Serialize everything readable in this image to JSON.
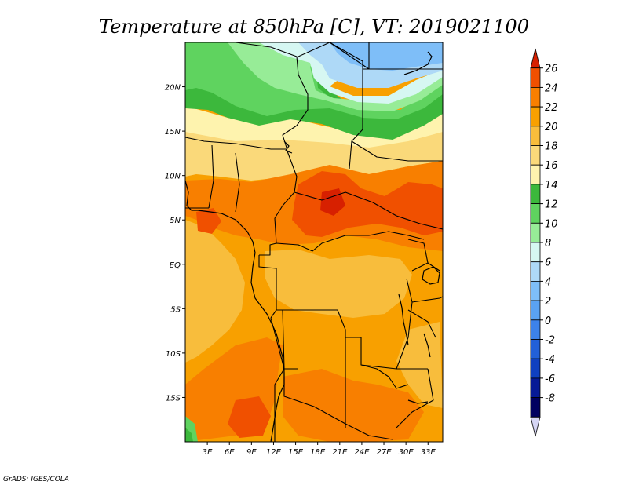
{
  "title": "Temperature at 850hPa [C], VT: 2019021100",
  "credit": "GrADS: IGES/COLA",
  "map": {
    "lon_range": [
      0,
      35
    ],
    "lat_range": [
      -20,
      25
    ],
    "x_ticks": [
      {
        "value": 3,
        "label": "3E"
      },
      {
        "value": 6,
        "label": "6E"
      },
      {
        "value": 9,
        "label": "9E"
      },
      {
        "value": 12,
        "label": "12E"
      },
      {
        "value": 15,
        "label": "15E"
      },
      {
        "value": 18,
        "label": "18E"
      },
      {
        "value": 21,
        "label": "21E"
      },
      {
        "value": 24,
        "label": "24E"
      },
      {
        "value": 27,
        "label": "27E"
      },
      {
        "value": 30,
        "label": "30E"
      },
      {
        "value": 33,
        "label": "33E"
      }
    ],
    "y_ticks": [
      {
        "value": 20,
        "label": "20N"
      },
      {
        "value": 15,
        "label": "15N"
      },
      {
        "value": 10,
        "label": "10N"
      },
      {
        "value": 5,
        "label": "5N"
      },
      {
        "value": 0,
        "label": "EQ"
      },
      {
        "value": -5,
        "label": "5S"
      },
      {
        "value": -10,
        "label": "10S"
      },
      {
        "value": -15,
        "label": "15S"
      }
    ]
  },
  "colorbar": {
    "levels": [
      "26",
      "24",
      "22",
      "20",
      "18",
      "16",
      "14",
      "12",
      "10",
      "8",
      "6",
      "4",
      "2",
      "0",
      "-2",
      "-4",
      "-6",
      "-8"
    ],
    "colors": [
      "#d72000",
      "#f05000",
      "#f87f00",
      "#f8a000",
      "#f8bd3c",
      "#fad97a",
      "#fef3ae",
      "#3cb83c",
      "#5fd35f",
      "#97ec97",
      "#d6f7f2",
      "#aed9f7",
      "#7ebef8",
      "#5aa2f2",
      "#3d82ea",
      "#2260d8",
      "#0f40c0",
      "#061a96",
      "#000060",
      "#d6d6f5"
    ]
  },
  "chart_data": {
    "type": "heatmap",
    "title": "Temperature at 850hPa [C], VT: 2019021100",
    "variable": "Temperature at 850hPa",
    "unit": "C",
    "valid_time": "2019021100",
    "colorbar_min": -8,
    "colorbar_max": 26,
    "colorbar_interval": 2,
    "x_range": [
      0,
      35
    ],
    "y_range": [
      -20,
      25
    ],
    "regions": [
      {
        "region": "northeast corner (~24N, 20-35E)",
        "value_range": [
          2,
          6
        ]
      },
      {
        "region": "Sahara belt (16-24N, 2-25E)",
        "value_range": [
          8,
          14
        ]
      },
      {
        "region": "Sahel (10-15N)",
        "value_range": [
          16,
          20
        ]
      },
      {
        "region": "Central African Republic / South Sudan (4-10N, 15-35E)",
        "value_range": [
          22,
          26
        ]
      },
      {
        "region": "Congo basin (5S-4N)",
        "value_range": [
          18,
          22
        ]
      },
      {
        "region": "Angola / Zambia (8-20S)",
        "value_range": [
          20,
          24
        ]
      },
      {
        "region": "southwest coast (~18-20S, 0-1E)",
        "value_range": [
          10,
          12
        ]
      }
    ]
  }
}
